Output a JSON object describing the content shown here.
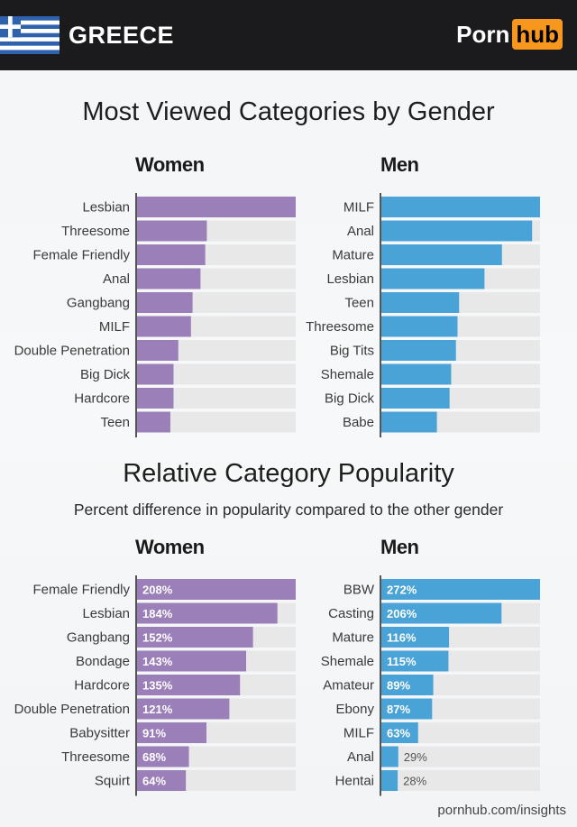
{
  "header": {
    "country": "GREECE",
    "logo_part1": "Porn",
    "logo_part2": "hub",
    "colors": {
      "background": "#1b1b1d",
      "logo_accent": "#f7971d",
      "flag_blue": "#2e62ad"
    }
  },
  "colors": {
    "women": "#9b7fb8",
    "men": "#4aa3d6",
    "track": "#e8e8e9"
  },
  "footer": {
    "source": "pornhub.com/insights"
  },
  "chart_data": [
    {
      "type": "bar",
      "orientation": "horizontal",
      "title": "Most Viewed Categories by Gender",
      "panel": "Women",
      "note": "No value labels shown; values are relative bar lengths estimated (top = 100)",
      "categories": [
        "Lesbian",
        "Threesome",
        "Female Friendly",
        "Anal",
        "Gangbang",
        "MILF",
        "Double Penetration",
        "Big Dick",
        "Hardcore",
        "Teen"
      ],
      "values": [
        100,
        44,
        43,
        40,
        35,
        34,
        26,
        23,
        23,
        21
      ],
      "xlim": [
        0,
        100
      ],
      "show_value_labels": false,
      "color": "#9b7fb8"
    },
    {
      "type": "bar",
      "orientation": "horizontal",
      "title": "Most Viewed Categories by Gender",
      "panel": "Men",
      "note": "No value labels shown; values are relative bar lengths estimated (top = 100)",
      "categories": [
        "MILF",
        "Anal",
        "Mature",
        "Lesbian",
        "Teen",
        "Threesome",
        "Big Tits",
        "Shemale",
        "Big Dick",
        "Babe"
      ],
      "values": [
        100,
        95,
        76,
        65,
        49,
        48,
        47,
        44,
        43,
        35
      ],
      "xlim": [
        0,
        100
      ],
      "show_value_labels": false,
      "color": "#4aa3d6"
    },
    {
      "type": "bar",
      "orientation": "horizontal",
      "title": "Relative Category Popularity",
      "subtitle": "Percent difference in popularity compared to the other gender",
      "panel": "Women",
      "categories": [
        "Female Friendly",
        "Lesbian",
        "Gangbang",
        "Bondage",
        "Hardcore",
        "Double Penetration",
        "Babysitter",
        "Threesome",
        "Squirt"
      ],
      "values": [
        208,
        184,
        152,
        143,
        135,
        121,
        91,
        68,
        64
      ],
      "labels": [
        "208%",
        "184%",
        "152%",
        "143%",
        "135%",
        "121%",
        "91%",
        "68%",
        "64%"
      ],
      "xlim": [
        0,
        208
      ],
      "show_value_labels": true,
      "color": "#9b7fb8"
    },
    {
      "type": "bar",
      "orientation": "horizontal",
      "title": "Relative Category Popularity",
      "subtitle": "Percent difference in popularity compared to the other gender",
      "panel": "Men",
      "categories": [
        "BBW",
        "Casting",
        "Mature",
        "Shemale",
        "Amateur",
        "Ebony",
        "MILF",
        "Anal",
        "Hentai"
      ],
      "values": [
        272,
        206,
        116,
        115,
        89,
        87,
        63,
        29,
        28
      ],
      "labels": [
        "272%",
        "206%",
        "116%",
        "115%",
        "89%",
        "87%",
        "63%",
        "29%",
        "28%"
      ],
      "xlim": [
        0,
        272
      ],
      "show_value_labels": true,
      "color": "#4aa3d6"
    }
  ],
  "sections": {
    "top_title": "Most Viewed Categories by Gender",
    "bottom_title": "Relative Category Popularity",
    "bottom_subtitle": "Percent difference in popularity compared to the other gender",
    "women_label": "Women",
    "men_label": "Men"
  }
}
